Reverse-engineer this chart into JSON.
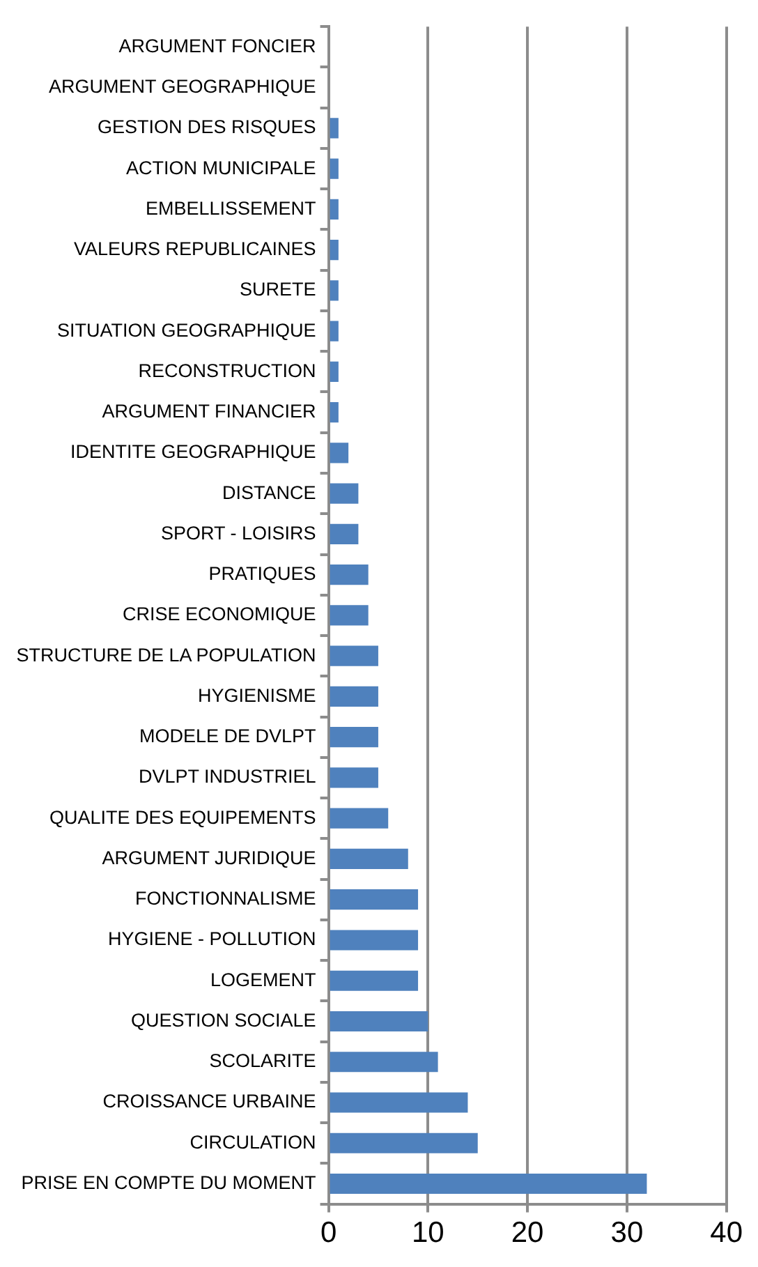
{
  "chart_data": {
    "type": "bar",
    "orientation": "horizontal",
    "categories": [
      "ARGUMENT FONCIER",
      "ARGUMENT GEOGRAPHIQUE",
      "GESTION DES RISQUES",
      "ACTION MUNICIPALE",
      "EMBELLISSEMENT",
      "VALEURS REPUBLICAINES",
      "SURETE",
      "SITUATION GEOGRAPHIQUE",
      "RECONSTRUCTION",
      "ARGUMENT FINANCIER",
      "IDENTITE GEOGRAPHIQUE",
      "DISTANCE",
      "SPORT - LOISIRS",
      "PRATIQUES",
      "CRISE ECONOMIQUE",
      "STRUCTURE DE LA POPULATION",
      "HYGIENISME",
      "MODELE DE DVLPT",
      "DVLPT INDUSTRIEL",
      "QUALITE DES EQUIPEMENTS",
      "ARGUMENT JURIDIQUE",
      "FONCTIONNALISME",
      "HYGIENE - POLLUTION",
      "LOGEMENT",
      "QUESTION SOCIALE",
      "SCOLARITE",
      "CROISSANCE URBAINE",
      "CIRCULATION",
      "PRISE EN COMPTE DU MOMENT"
    ],
    "values": [
      0,
      0,
      1,
      1,
      1,
      1,
      1,
      1,
      1,
      1,
      2,
      3,
      3,
      4,
      4,
      5,
      5,
      5,
      5,
      6,
      8,
      9,
      9,
      9,
      10,
      11,
      14,
      15,
      32
    ],
    "color": "#4f81bd",
    "xlim": [
      0,
      40
    ],
    "xticks": [
      0,
      10,
      20,
      30,
      40
    ],
    "grid": "x",
    "legend": false
  }
}
